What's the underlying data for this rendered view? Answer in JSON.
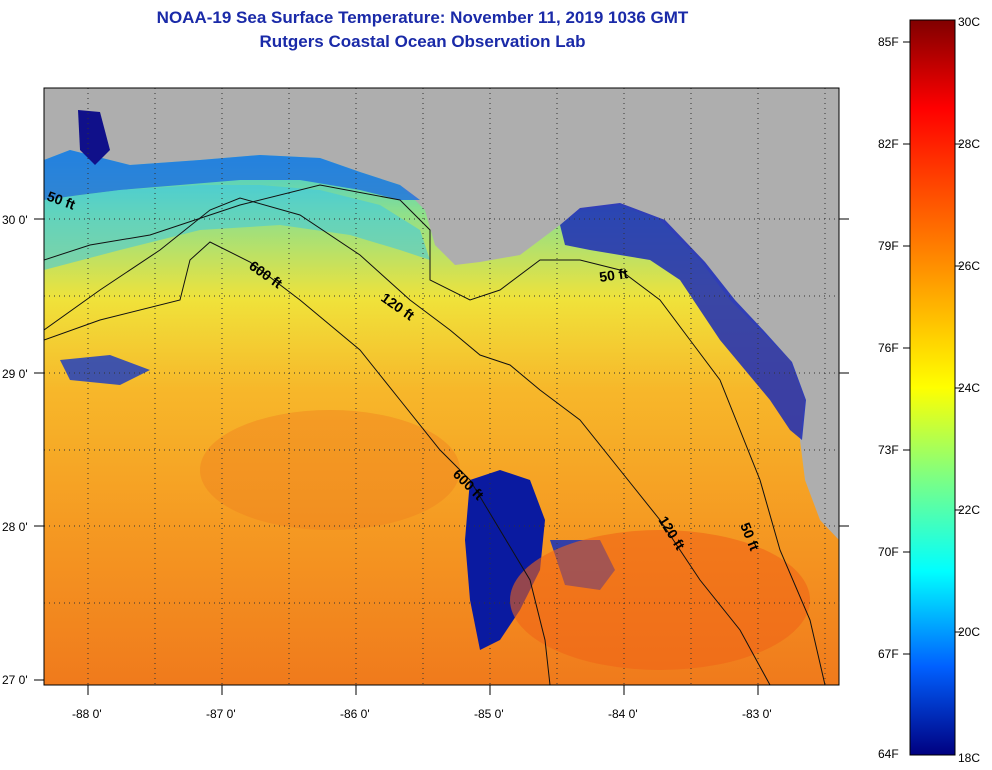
{
  "header": {
    "title": "NOAA-19 Sea Surface Temperature:  November 11, 2019 1036 GMT",
    "subtitle": "Rutgers Coastal Ocean Observation Lab"
  },
  "map": {
    "lat_labels": [
      "30 0'",
      "29 0'",
      "28 0'",
      "27 0'"
    ],
    "lon_labels": [
      "-88 0'",
      "-87 0'",
      "-86 0'",
      "-85 0'",
      "-84 0'",
      "-83 0'"
    ],
    "contour_labels": [
      "50 ft",
      "600 ft",
      "120 ft",
      "50 ft",
      "600 ft",
      "120 ft",
      "50 ft"
    ],
    "colors": {
      "land": "#aeaeae",
      "frame": "#000000"
    }
  },
  "colorbar": {
    "fahrenheit": [
      "85F",
      "82F",
      "79F",
      "76F",
      "73F",
      "70F",
      "67F",
      "64F"
    ],
    "celsius": [
      "30C",
      "28C",
      "26C",
      "24C",
      "22C",
      "20C",
      "18C"
    ]
  }
}
